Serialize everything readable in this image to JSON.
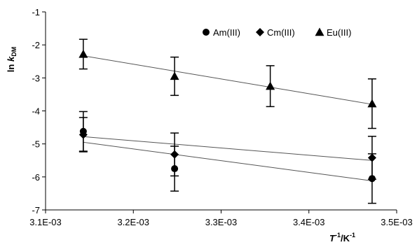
{
  "chart_data": {
    "type": "scatter",
    "title": "",
    "xlabel": {
      "base": "T",
      "sup": "-1",
      "suffix": "/K",
      "suffix_sup": "-1"
    },
    "ylabel": {
      "base": "ln ",
      "italic": "k",
      "sub": "DM"
    },
    "xlim": [
      0.0031,
      0.0035
    ],
    "ylim": [
      -7,
      -1
    ],
    "xticks": [
      0.0031,
      0.0032,
      0.0033,
      0.0034,
      0.0035
    ],
    "xtick_labels": [
      "3.1E-03",
      "3.2E-03",
      "3.3E-03",
      "3.4E-03",
      "3.5E-03"
    ],
    "yticks": [
      -7,
      -6,
      -5,
      -4,
      -3,
      -2,
      -1
    ],
    "ytick_labels": [
      "-7",
      "-6",
      "-5",
      "-4",
      "-3",
      "-2",
      "-1"
    ],
    "grid": false,
    "legend_position": "top-right",
    "series": [
      {
        "name": "Am(III)",
        "marker": "circle",
        "x": [
          0.003143,
          0.003247,
          0.003472
        ],
        "y": [
          -4.62,
          -5.75,
          -6.05
        ],
        "err": [
          0.6,
          0.68,
          0.75
        ],
        "fit": [
          [
            0.003143,
            -4.95
          ],
          [
            0.003472,
            -6.12
          ]
        ]
      },
      {
        "name": "Cm(III)",
        "marker": "diamond",
        "x": [
          0.003143,
          0.003247,
          0.003472
        ],
        "y": [
          -4.72,
          -5.32,
          -5.42
        ],
        "err": [
          0.52,
          0.65,
          0.65
        ],
        "fit": [
          [
            0.003143,
            -4.78
          ],
          [
            0.003472,
            -5.5
          ]
        ]
      },
      {
        "name": "Eu(III)",
        "marker": "triangle",
        "x": [
          0.003143,
          0.003247,
          0.003356,
          0.003472
        ],
        "y": [
          -2.28,
          -2.95,
          -3.25,
          -3.78
        ],
        "err": [
          0.45,
          0.58,
          0.62,
          0.75
        ],
        "fit": [
          [
            0.003143,
            -2.33
          ],
          [
            0.003472,
            -3.8
          ]
        ]
      }
    ]
  }
}
